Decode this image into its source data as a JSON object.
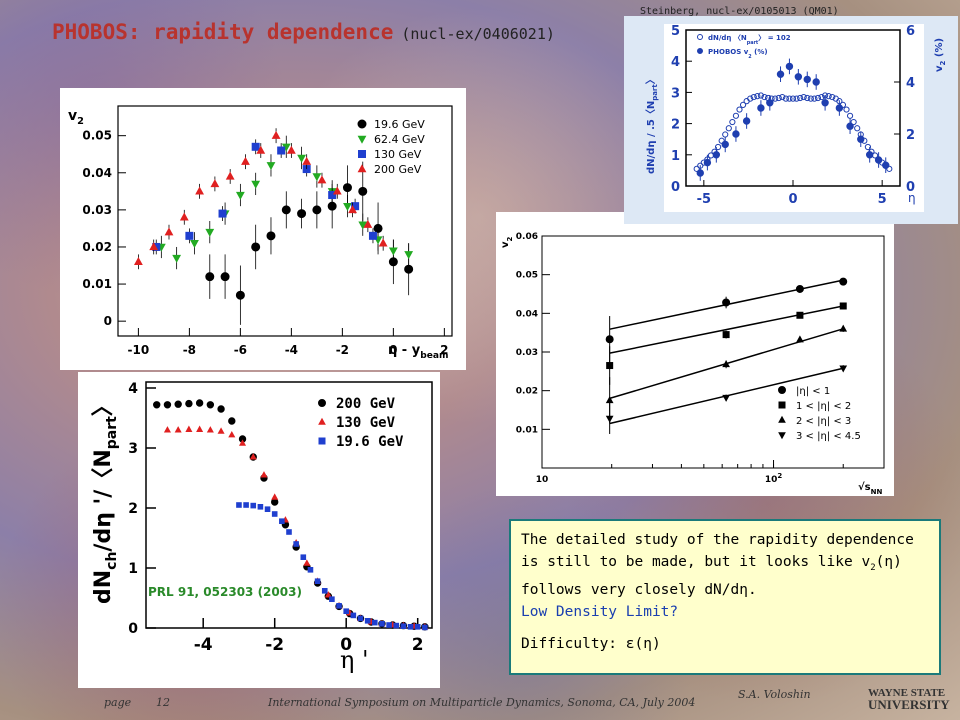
{
  "title": "PHOBOS: rapidity dependence",
  "title_ref": "(nucl-ex/0406021)",
  "corner_caption": "Steinberg, nucl-ex/0105013 (QM01)",
  "note": {
    "line1": "The detailed study of the rapidity dependence",
    "line2": "is still to be made, but it looks like v",
    "line3": "follows very closely dN/dη.",
    "line4": "Low Density Limit?",
    "line5": "Difficulty: ε(η)"
  },
  "footer": {
    "page": "page",
    "page_num": "12",
    "conference": "International Symposium on Multiparticle Dynamics, Sonoma, CA, July 2004",
    "author": "S.A. Voloshin",
    "logo_line1": "WAYNE STATE",
    "logo_line2": "UNIVERSITY"
  },
  "chart_data": [
    {
      "type": "scatter",
      "name": "v2-vs-eta-shifted",
      "xlabel": "η - y",
      "xlabel_sub": "beam",
      "ylabel": "v",
      "ylabel_sub": "2",
      "xlim": [
        -10.8,
        2.3
      ],
      "ylim": [
        -0.004,
        0.058
      ],
      "xticks": [
        -10,
        -8,
        -6,
        -4,
        -2,
        0,
        2
      ],
      "yticks": [
        0,
        0.01,
        0.02,
        0.03,
        0.04,
        0.05
      ],
      "ytick_labels": [
        "0",
        "0.01",
        "0.02",
        "0.03",
        "0.04",
        "0.05"
      ],
      "series": [
        {
          "name": "19.6 GeV",
          "marker": "circle",
          "color": "#000000",
          "x": [
            -7.2,
            -6.6,
            -6.0,
            -5.4,
            -4.8,
            -4.2,
            -3.6,
            -3.0,
            -2.4,
            -1.8,
            -1.2,
            -0.6,
            0.0,
            0.6
          ],
          "y": [
            0.012,
            0.012,
            0.007,
            0.02,
            0.023,
            0.03,
            0.029,
            0.03,
            0.031,
            0.036,
            0.035,
            0.025,
            0.016,
            0.014
          ],
          "err": [
            0.006,
            0.006,
            0.008,
            0.006,
            0.005,
            0.005,
            0.004,
            0.005,
            0.006,
            0.006,
            0.008,
            0.007,
            0.006,
            0.007
          ]
        },
        {
          "name": "62.4 GeV",
          "marker": "tri-down",
          "color": "#22aa22",
          "x": [
            -9.1,
            -8.5,
            -7.8,
            -7.2,
            -6.6,
            -6.0,
            -5.4,
            -4.8,
            -4.2,
            -3.6,
            -3.0,
            -2.4,
            -1.8,
            -1.2,
            -0.6,
            0.0,
            0.6
          ],
          "y": [
            0.02,
            0.017,
            0.021,
            0.024,
            0.029,
            0.034,
            0.037,
            0.042,
            0.047,
            0.044,
            0.039,
            0.035,
            0.031,
            0.026,
            0.022,
            0.019,
            0.018
          ],
          "err": [
            0.003,
            0.003,
            0.003,
            0.003,
            0.003,
            0.003,
            0.003,
            0.003,
            0.003,
            0.003,
            0.003,
            0.003,
            0.003,
            0.003,
            0.003,
            0.003,
            0.003
          ]
        },
        {
          "name": "130 GeV",
          "marker": "square",
          "color": "#1f3fcf",
          "x": [
            -9.3,
            -8.0,
            -6.7,
            -5.4,
            -4.4,
            -3.4,
            -2.4,
            -1.5,
            -0.8
          ],
          "y": [
            0.02,
            0.023,
            0.029,
            0.047,
            0.046,
            0.041,
            0.034,
            0.031,
            0.023
          ],
          "err": [
            0.002,
            0.002,
            0.002,
            0.002,
            0.002,
            0.002,
            0.002,
            0.002,
            0.002
          ]
        },
        {
          "name": "200 GeV",
          "marker": "tri-up",
          "color": "#e02020",
          "x": [
            -10.0,
            -9.4,
            -8.8,
            -8.2,
            -7.6,
            -7.0,
            -6.4,
            -5.8,
            -5.2,
            -4.6,
            -4.0,
            -3.4,
            -2.8,
            -2.2,
            -1.6,
            -1.0,
            -0.4
          ],
          "y": [
            0.016,
            0.02,
            0.024,
            0.028,
            0.035,
            0.037,
            0.039,
            0.043,
            0.046,
            0.05,
            0.046,
            0.043,
            0.038,
            0.035,
            0.03,
            0.026,
            0.021
          ],
          "err": [
            0.002,
            0.002,
            0.002,
            0.002,
            0.002,
            0.002,
            0.002,
            0.002,
            0.002,
            0.002,
            0.002,
            0.002,
            0.002,
            0.002,
            0.002,
            0.002,
            0.002
          ]
        }
      ],
      "legend": "top-right"
    },
    {
      "type": "scatter",
      "name": "dN-deta-vs-eta-prime",
      "xlabel": "η '",
      "ylabel": "dN",
      "ylabel_sub": "ch",
      "ylabel_rest": "/dη '/〈N",
      "ylabel_sub2": "part",
      "ylabel_end": "〉",
      "xlim": [
        -5.6,
        2.4
      ],
      "ylim": [
        0,
        4.1
      ],
      "xticks": [
        -4,
        -2,
        0,
        2
      ],
      "yticks": [
        0,
        1,
        2,
        3,
        4
      ],
      "annotation": "PRL 91, 052303 (2003)",
      "series": [
        {
          "name": "200 GeV",
          "marker": "circle",
          "color": "#000000",
          "x": [
            -5.3,
            -5.0,
            -4.7,
            -4.4,
            -4.1,
            -3.8,
            -3.5,
            -3.2,
            -2.9,
            -2.6,
            -2.3,
            -2.0,
            -1.7,
            -1.4,
            -1.1,
            -0.8,
            -0.5,
            -0.2,
            0.1,
            0.4,
            0.7,
            1.0,
            1.3,
            1.6,
            1.9,
            2.2
          ],
          "y": [
            3.72,
            3.72,
            3.73,
            3.74,
            3.75,
            3.72,
            3.65,
            3.45,
            3.15,
            2.85,
            2.5,
            2.1,
            1.72,
            1.35,
            1.02,
            0.75,
            0.53,
            0.36,
            0.24,
            0.16,
            0.1,
            0.07,
            0.05,
            0.04,
            0.03,
            0.02
          ]
        },
        {
          "name": "130 GeV",
          "marker": "tri-up",
          "color": "#e02020",
          "x": [
            -5.0,
            -4.7,
            -4.4,
            -4.1,
            -3.8,
            -3.5,
            -3.2,
            -2.9,
            -2.6,
            -2.3,
            -2.0,
            -1.7,
            -1.4,
            -1.1,
            -0.8,
            -0.5,
            -0.2,
            0.1,
            0.4,
            0.7,
            1.0,
            1.3,
            1.6,
            1.9,
            2.2
          ],
          "y": [
            3.3,
            3.3,
            3.31,
            3.31,
            3.3,
            3.28,
            3.22,
            3.08,
            2.85,
            2.55,
            2.18,
            1.8,
            1.42,
            1.08,
            0.78,
            0.55,
            0.37,
            0.25,
            0.16,
            0.1,
            0.07,
            0.05,
            0.04,
            0.03,
            0.02
          ]
        },
        {
          "name": "19.6 GeV",
          "marker": "square",
          "color": "#1f3fcf",
          "x": [
            -3.0,
            -2.8,
            -2.6,
            -2.4,
            -2.2,
            -2.0,
            -1.8,
            -1.6,
            -1.4,
            -1.2,
            -1.0,
            -0.8,
            -0.6,
            -0.4,
            -0.2,
            0.0,
            0.2,
            0.4,
            0.6,
            0.8,
            1.0,
            1.2,
            1.4,
            1.6,
            1.8,
            2.0,
            2.2
          ],
          "y": [
            2.05,
            2.05,
            2.04,
            2.02,
            1.98,
            1.9,
            1.78,
            1.6,
            1.4,
            1.18,
            0.97,
            0.78,
            0.62,
            0.48,
            0.37,
            0.28,
            0.21,
            0.16,
            0.12,
            0.09,
            0.07,
            0.05,
            0.04,
            0.03,
            0.02,
            0.02,
            0.01
          ]
        }
      ],
      "legend": "top-right"
    },
    {
      "type": "scatter",
      "name": "v2-vs-sqrt-s",
      "xscale": "log",
      "xlabel": "√s",
      "xlabel_sub": "NN",
      "ylabel": "v",
      "ylabel_sub": "2",
      "xlim": [
        10,
        300
      ],
      "ylim": [
        0,
        0.06
      ],
      "yticks": [
        0.01,
        0.02,
        0.03,
        0.04,
        0.05,
        0.06
      ],
      "ytick_labels": [
        "0.01",
        "0.02",
        "0.03",
        "0.04",
        "0.05",
        "0.06"
      ],
      "xtick_labels": [
        {
          "x": 10,
          "label": "10"
        },
        {
          "x": 100,
          "label": "10",
          "sup": "2"
        }
      ],
      "series": [
        {
          "name": "|η| < 1",
          "marker": "circle",
          "x": [
            19.6,
            62.4,
            130,
            200
          ],
          "y": [
            0.0333,
            0.0428,
            0.0463,
            0.0482
          ],
          "err": [
            0.006,
            0.0015,
            0.0008,
            0.0008
          ],
          "fit": [
            0.0359,
            0.0486
          ]
        },
        {
          "name": "1 < |η| < 2",
          "marker": "square",
          "x": [
            19.6,
            62.4,
            130,
            200
          ],
          "y": [
            0.0265,
            0.0345,
            0.0395,
            0.0419
          ],
          "err": [
            0.005,
            0.001,
            0.0008,
            0.0008
          ],
          "fit": [
            0.0297,
            0.0419
          ]
        },
        {
          "name": "2 < |η| < 3",
          "marker": "tri-up",
          "x": [
            19.6,
            62.4,
            130,
            200
          ],
          "y": [
            0.0175,
            0.0268,
            0.0332,
            0.036
          ],
          "err": [
            0.006,
            0.001,
            0.0008,
            0.0008
          ],
          "fit": [
            0.018,
            0.036
          ]
        },
        {
          "name": "3 < |η| < 4.5",
          "marker": "tri-down",
          "x": [
            19.6,
            62.4,
            200
          ],
          "y": [
            0.0128,
            0.0182,
            0.0258
          ],
          "err": [
            0.004,
            0.0008,
            0.0008
          ],
          "fit": [
            0.0115,
            0.0258
          ]
        }
      ],
      "legend": "bottom-right"
    },
    {
      "type": "scatter",
      "name": "dN-deta-and-v2-vs-eta",
      "xlabel": "η",
      "ylabel": "dN/dη / .5〈N",
      "ylabel_sub": "part",
      "ylabel_end": "〉",
      "y2label": "v",
      "y2label_sub": "2",
      "y2label_rest": " (%)",
      "xlim": [
        -6,
        6
      ],
      "ylim": [
        0,
        5
      ],
      "y2lim": [
        0,
        6
      ],
      "xticks": [
        -5,
        0,
        5
      ],
      "yticks": [
        0,
        1,
        2,
        3,
        4,
        5
      ],
      "y2ticks": [
        0,
        2,
        4,
        6
      ],
      "legend_entries": [
        {
          "text": "dN/dη 〈N",
          "sub": "part",
          "end": "〉 = 102",
          "marker": "open-circle"
        },
        {
          "text": "PHOBOS v",
          "sub": "2",
          "end": " (%)",
          "marker": "filled-circle"
        }
      ],
      "series": [
        {
          "name": "dN/dη",
          "marker": "open-circle",
          "x": [
            -5.4,
            -5.2,
            -5.0,
            -4.8,
            -4.6,
            -4.4,
            -4.2,
            -4.0,
            -3.8,
            -3.6,
            -3.4,
            -3.2,
            -3.0,
            -2.8,
            -2.6,
            -2.4,
            -2.2,
            -2.0,
            -1.8,
            -1.6,
            -1.4,
            -1.2,
            -1.0,
            -0.8,
            -0.6,
            -0.4,
            -0.2,
            0.0,
            0.2,
            0.4,
            0.6,
            0.8,
            1.0,
            1.2,
            1.4,
            1.6,
            1.8,
            2.0,
            2.2,
            2.4,
            2.6,
            2.8,
            3.0,
            3.2,
            3.4,
            3.6,
            3.8,
            4.0,
            4.2,
            4.4,
            4.6,
            4.8,
            5.0,
            5.2,
            5.4
          ],
          "y": [
            0.55,
            0.65,
            0.75,
            0.85,
            0.98,
            1.1,
            1.25,
            1.45,
            1.65,
            1.85,
            2.05,
            2.25,
            2.45,
            2.6,
            2.72,
            2.8,
            2.85,
            2.88,
            2.9,
            2.85,
            2.82,
            2.8,
            2.8,
            2.82,
            2.85,
            2.8,
            2.8,
            2.8,
            2.8,
            2.82,
            2.85,
            2.82,
            2.8,
            2.8,
            2.82,
            2.85,
            2.9,
            2.88,
            2.85,
            2.8,
            2.72,
            2.6,
            2.45,
            2.25,
            2.05,
            1.85,
            1.65,
            1.45,
            1.25,
            1.1,
            0.98,
            0.85,
            0.75,
            0.65,
            0.55
          ]
        },
        {
          "name": "PHOBOS v2 (%)",
          "marker": "filled-circle",
          "axis": "y2",
          "x": [
            -5.2,
            -4.8,
            -4.3,
            -3.8,
            -3.2,
            -2.6,
            -1.8,
            -1.3,
            -0.7,
            -0.2,
            0.3,
            0.8,
            1.3,
            1.8,
            2.6,
            3.2,
            3.8,
            4.3,
            4.8,
            5.2
          ],
          "y": [
            0.5,
            0.9,
            1.2,
            1.6,
            2.0,
            2.5,
            3.0,
            3.2,
            4.3,
            4.6,
            4.2,
            4.1,
            4.0,
            3.2,
            3.0,
            2.3,
            1.8,
            1.2,
            1.0,
            0.8
          ],
          "err": [
            0.3,
            0.3,
            0.3,
            0.3,
            0.3,
            0.3,
            0.3,
            0.3,
            0.3,
            0.3,
            0.3,
            0.3,
            0.3,
            0.3,
            0.3,
            0.3,
            0.3,
            0.3,
            0.3,
            0.3
          ]
        }
      ],
      "legend": "top-left"
    }
  ]
}
